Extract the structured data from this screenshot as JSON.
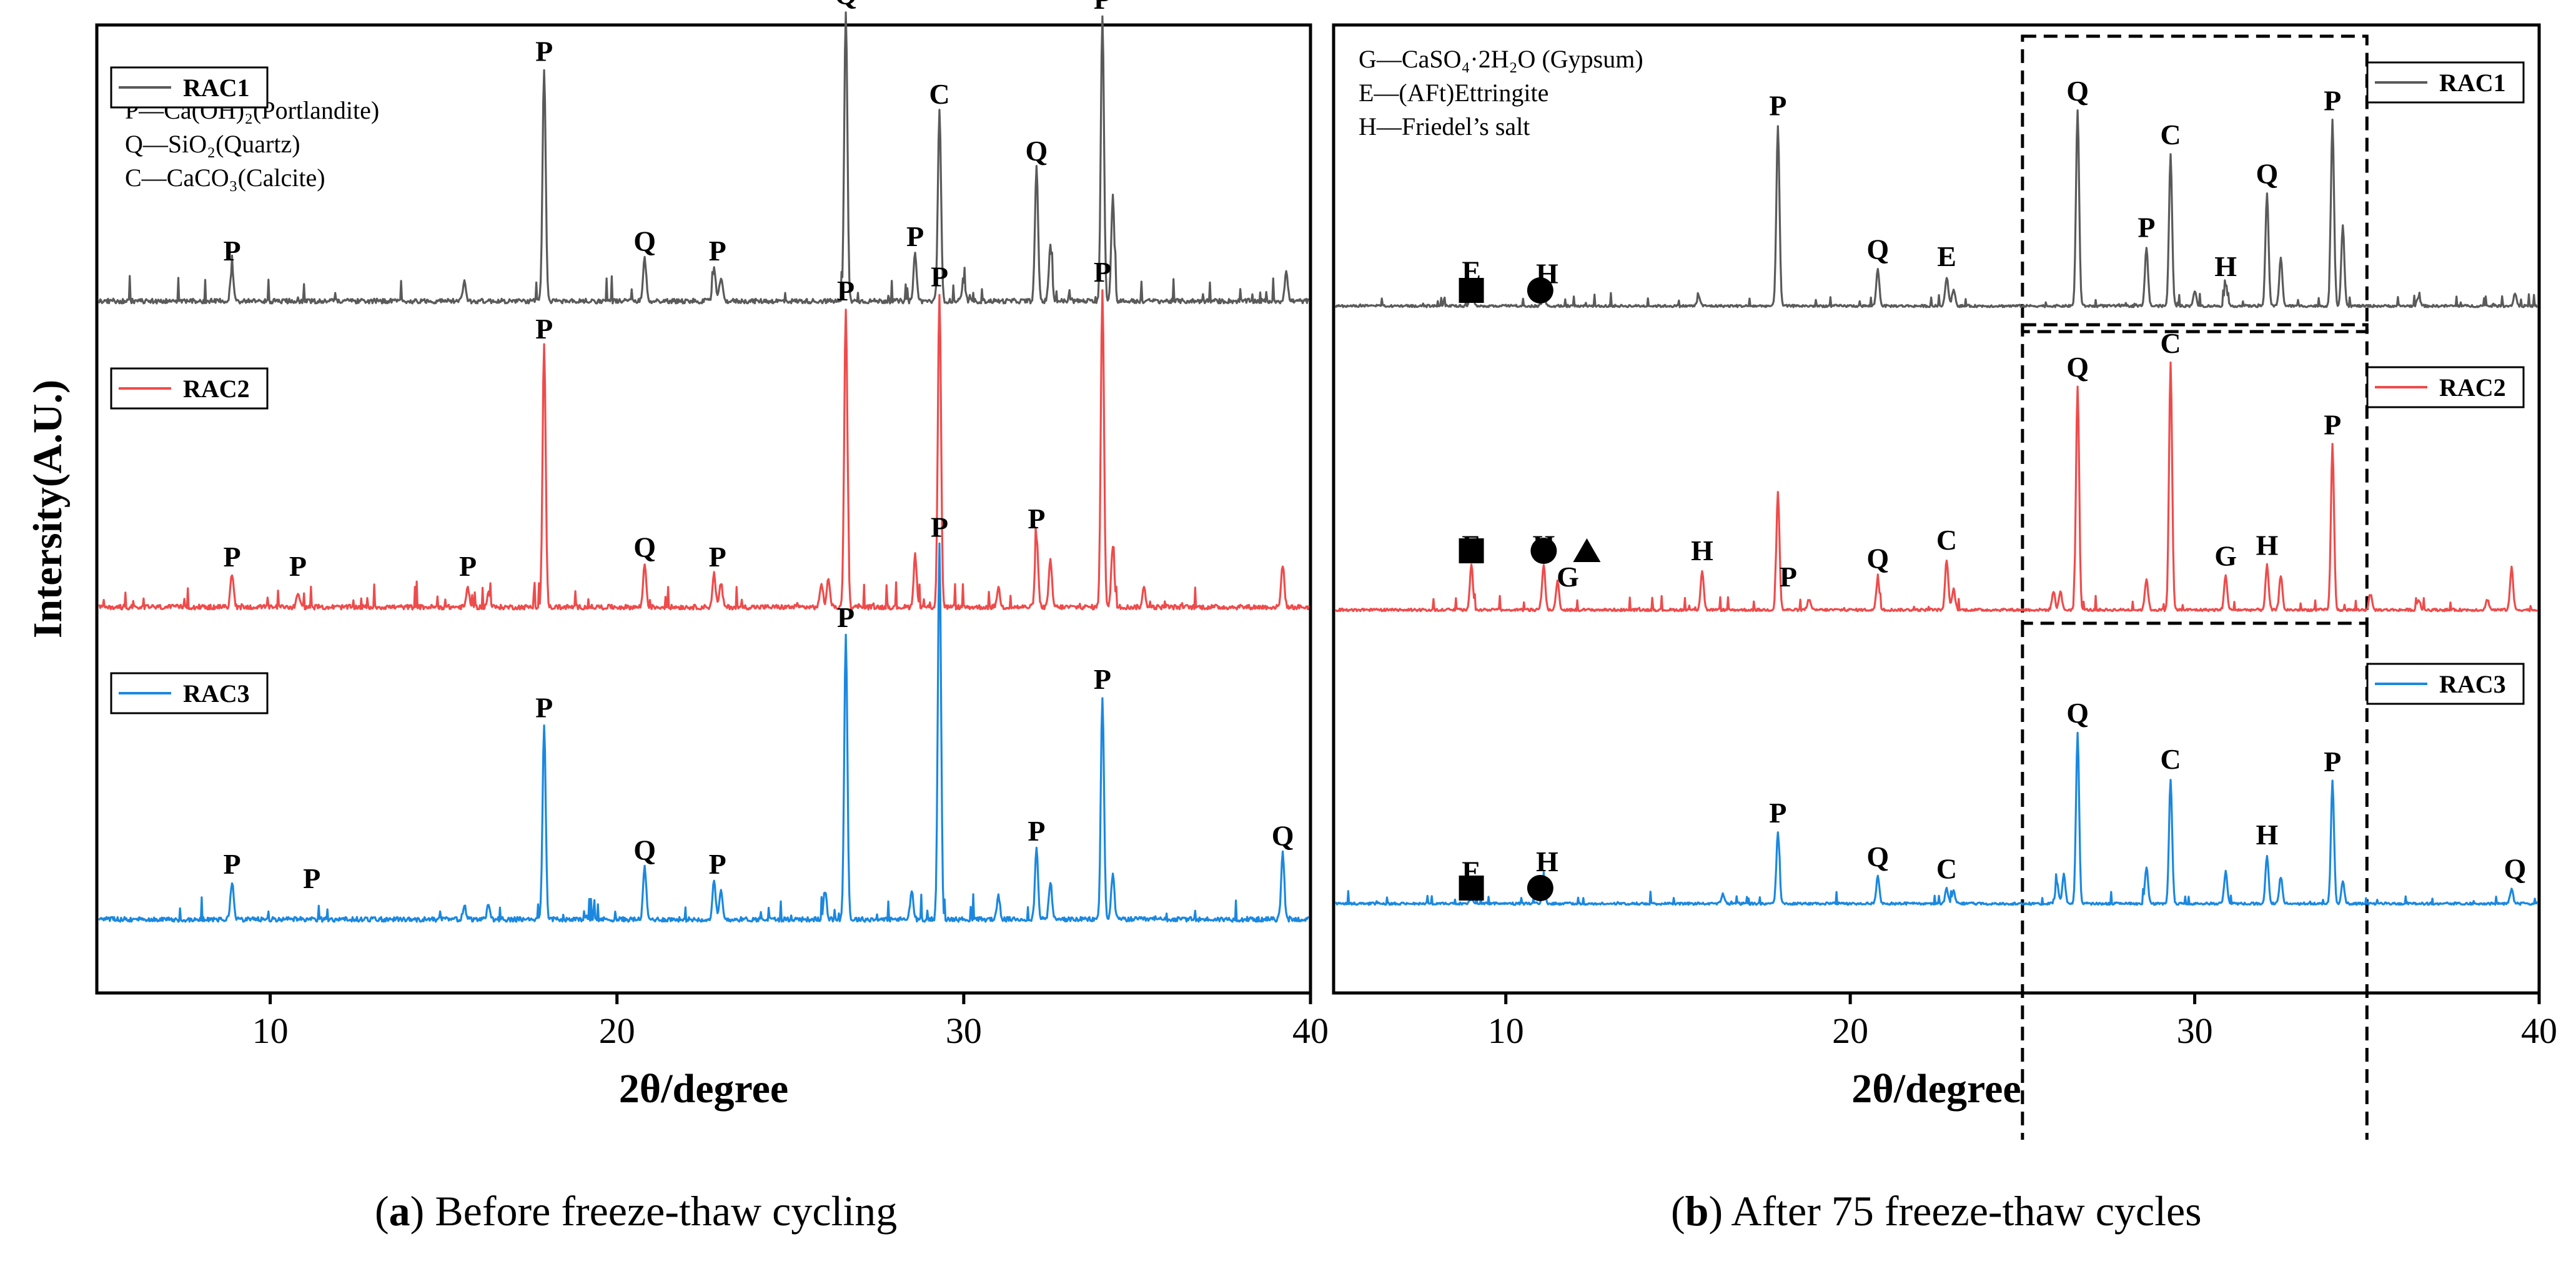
{
  "figure": {
    "caption_a": {
      "letter": "a",
      "text": "Before freeze-thaw cycling"
    },
    "caption_b": {
      "letter": "b",
      "text": "After 75 freeze-thaw cycles"
    }
  },
  "chart_data": [
    {
      "type": "line",
      "id": "a",
      "xlabel": "2θ/degree",
      "ylabel": "Intersity(A.U.)",
      "xlim": [
        5,
        40
      ],
      "xticks": [
        10,
        20,
        30,
        40
      ],
      "y_ticks_shown": false,
      "legend_position": "top-left of each trace",
      "phase_legend": [
        "P—Ca(OH)₂(Portlandite)",
        "Q—SiO₂(Quartz)",
        "C—CaCO₃(Calcite)"
      ],
      "series": [
        {
          "name": "RAC1",
          "color": "#5a5a5a",
          "offset": 2.0,
          "peaks": [
            [
              8.9,
              0.07
            ],
            [
              15.6,
              0.04
            ],
            [
              17.9,
              0.49
            ],
            [
              20.8,
              0.09
            ],
            [
              22.8,
              0.07
            ],
            [
              23.0,
              0.05
            ],
            [
              26.6,
              0.61
            ],
            [
              28.6,
              0.1
            ],
            [
              29.3,
              0.4
            ],
            [
              30.0,
              0.04
            ],
            [
              32.1,
              0.28
            ],
            [
              32.5,
              0.12
            ],
            [
              34.0,
              0.6
            ],
            [
              34.3,
              0.22
            ],
            [
              39.3,
              0.06
            ]
          ],
          "labels": [
            [
              "P",
              8.9
            ],
            [
              "P",
              17.9
            ],
            [
              "Q",
              20.8
            ],
            [
              "P",
              22.9
            ],
            [
              "Q",
              26.6
            ],
            [
              "P",
              28.6
            ],
            [
              "C",
              29.3
            ],
            [
              "Q",
              32.1
            ],
            [
              "P",
              34.0
            ]
          ]
        },
        {
          "name": "RAC2",
          "color": "#ef4b4b",
          "offset": 1.0,
          "peaks": [
            [
              8.9,
              0.07
            ],
            [
              10.8,
              0.03
            ],
            [
              15.7,
              0.04
            ],
            [
              16.3,
              0.03
            ],
            [
              17.9,
              0.55
            ],
            [
              20.8,
              0.09
            ],
            [
              22.8,
              0.07
            ],
            [
              23.0,
              0.05
            ],
            [
              25.9,
              0.05
            ],
            [
              26.1,
              0.06
            ],
            [
              26.6,
              0.63
            ],
            [
              28.6,
              0.11
            ],
            [
              29.3,
              0.66
            ],
            [
              31.0,
              0.04
            ],
            [
              32.1,
              0.15
            ],
            [
              32.5,
              0.1
            ],
            [
              34.0,
              0.67
            ],
            [
              34.3,
              0.13
            ],
            [
              35.2,
              0.04
            ],
            [
              39.2,
              0.09
            ]
          ],
          "labels": [
            [
              "P",
              8.9
            ],
            [
              "P",
              10.8
            ],
            [
              "P",
              15.7
            ],
            [
              "P",
              17.9
            ],
            [
              "Q",
              20.8
            ],
            [
              "P",
              22.9
            ],
            [
              "P",
              26.6
            ],
            [
              "P",
              29.3
            ],
            [
              "P",
              32.1
            ],
            [
              "P",
              34.0
            ]
          ]
        },
        {
          "name": "RAC3",
          "color": "#1a88e0",
          "offset": 0.0,
          "peaks": [
            [
              8.9,
              0.08
            ],
            [
              15.6,
              0.03
            ],
            [
              16.3,
              0.03
            ],
            [
              17.9,
              0.41
            ],
            [
              20.8,
              0.11
            ],
            [
              22.8,
              0.08
            ],
            [
              23.0,
              0.06
            ],
            [
              26.0,
              0.06
            ],
            [
              26.6,
              0.6
            ],
            [
              28.5,
              0.06
            ],
            [
              29.3,
              0.79
            ],
            [
              31.0,
              0.05
            ],
            [
              32.1,
              0.15
            ],
            [
              32.5,
              0.08
            ],
            [
              34.0,
              0.47
            ],
            [
              34.3,
              0.1
            ],
            [
              39.2,
              0.14
            ]
          ],
          "labels": [
            [
              "P",
              8.9
            ],
            [
              "P",
              11.2
            ],
            [
              "P",
              17.9
            ],
            [
              "Q",
              20.8
            ],
            [
              "P",
              22.9
            ],
            [
              "P",
              26.6
            ],
            [
              "P",
              29.3
            ],
            [
              "P",
              32.1
            ],
            [
              "P",
              34.0
            ],
            [
              "Q",
              39.2
            ]
          ]
        }
      ]
    },
    {
      "type": "line",
      "id": "b",
      "xlabel": "2θ/degree",
      "ylabel": "",
      "xlim": [
        5,
        40
      ],
      "xticks": [
        10,
        20,
        30,
        40
      ],
      "y_ticks_shown": false,
      "legend_position": "top-right of each trace",
      "phase_legend": [
        "G—CaSO₄·2H₂O (Gypsum)",
        "E—(AFt)Ettringite",
        "H—Friedel’s salt"
      ],
      "highlight_range": [
        25,
        35
      ],
      "series": [
        {
          "name": "RAC1",
          "color": "#5a5a5a",
          "offset": 2.0,
          "peaks": [
            [
              9.0,
              0.06
            ],
            [
              11.1,
              0.05
            ],
            [
              15.6,
              0.04
            ],
            [
              17.9,
              0.74
            ],
            [
              20.8,
              0.15
            ],
            [
              22.8,
              0.12
            ],
            [
              23.0,
              0.07
            ],
            [
              26.6,
              0.8
            ],
            [
              28.6,
              0.24
            ],
            [
              29.3,
              0.62
            ],
            [
              30.0,
              0.06
            ],
            [
              30.9,
              0.08
            ],
            [
              32.1,
              0.46
            ],
            [
              32.5,
              0.2
            ],
            [
              34.0,
              0.76
            ],
            [
              34.3,
              0.33
            ],
            [
              36.5,
              0.04
            ],
            [
              39.3,
              0.05
            ]
          ],
          "labels": [
            [
              "E",
              9.0
            ],
            [
              "H",
              11.2
            ],
            [
              "P",
              17.9
            ],
            [
              "Q",
              20.8
            ],
            [
              "E",
              22.8
            ],
            [
              "Q",
              26.6
            ],
            [
              "P",
              28.6
            ],
            [
              "C",
              29.3
            ],
            [
              "H",
              30.9
            ],
            [
              "Q",
              32.1
            ],
            [
              "P",
              34.0
            ]
          ],
          "markers": [
            [
              "square",
              9.0
            ],
            [
              "circle",
              11.0
            ]
          ]
        },
        {
          "name": "RAC2",
          "color": "#ef4b4b",
          "offset": 1.0,
          "peaks": [
            [
              9.0,
              0.17
            ],
            [
              11.1,
              0.17
            ],
            [
              11.5,
              0.11
            ],
            [
              15.7,
              0.15
            ],
            [
              17.9,
              0.45
            ],
            [
              18.8,
              0.04
            ],
            [
              20.8,
              0.12
            ],
            [
              22.8,
              0.19
            ],
            [
              23.0,
              0.08
            ],
            [
              25.9,
              0.07
            ],
            [
              26.1,
              0.07
            ],
            [
              26.6,
              0.85
            ],
            [
              28.6,
              0.12
            ],
            [
              29.3,
              0.94
            ],
            [
              30.9,
              0.13
            ],
            [
              32.1,
              0.17
            ],
            [
              32.5,
              0.13
            ],
            [
              34.0,
              0.63
            ],
            [
              35.1,
              0.06
            ],
            [
              36.5,
              0.04
            ],
            [
              38.5,
              0.04
            ],
            [
              39.2,
              0.16
            ]
          ],
          "labels": [
            [
              "E",
              9.0
            ],
            [
              "H",
              11.1
            ],
            [
              "G",
              11.8
            ],
            [
              "H",
              15.7
            ],
            [
              "P",
              18.2
            ],
            [
              "Q",
              20.8
            ],
            [
              "C",
              22.8
            ],
            [
              "Q",
              26.6
            ],
            [
              "C",
              29.3
            ],
            [
              "G",
              30.9
            ],
            [
              "H",
              32.1
            ],
            [
              "P",
              34.0
            ]
          ],
          "markers": [
            [
              "square",
              9.0
            ],
            [
              "circle",
              11.1
            ],
            [
              "triangle",
              11.5
            ]
          ]
        },
        {
          "name": "RAC3",
          "color": "#1a88e0",
          "offset": 0.0,
          "peaks": [
            [
              9.0,
              0.02
            ],
            [
              11.1,
              0.09
            ],
            [
              16.3,
              0.04
            ],
            [
              17.9,
              0.29
            ],
            [
              20.8,
              0.11
            ],
            [
              22.8,
              0.06
            ],
            [
              23.0,
              0.05
            ],
            [
              26.0,
              0.09
            ],
            [
              26.2,
              0.12
            ],
            [
              26.6,
              0.7
            ],
            [
              28.6,
              0.15
            ],
            [
              29.3,
              0.51
            ],
            [
              30.9,
              0.13
            ],
            [
              32.1,
              0.2
            ],
            [
              32.5,
              0.11
            ],
            [
              34.0,
              0.5
            ],
            [
              34.3,
              0.09
            ],
            [
              39.2,
              0.06
            ]
          ],
          "labels": [
            [
              "E",
              9.0
            ],
            [
              "H",
              11.2
            ],
            [
              "P",
              17.9
            ],
            [
              "Q",
              20.8
            ],
            [
              "C",
              22.8
            ],
            [
              "Q",
              26.6
            ],
            [
              "C",
              29.3
            ],
            [
              "H",
              32.1
            ],
            [
              "P",
              34.0
            ],
            [
              "Q",
              39.3
            ]
          ],
          "markers": [
            [
              "square",
              9.0
            ],
            [
              "circle",
              11.0
            ]
          ]
        }
      ]
    }
  ]
}
